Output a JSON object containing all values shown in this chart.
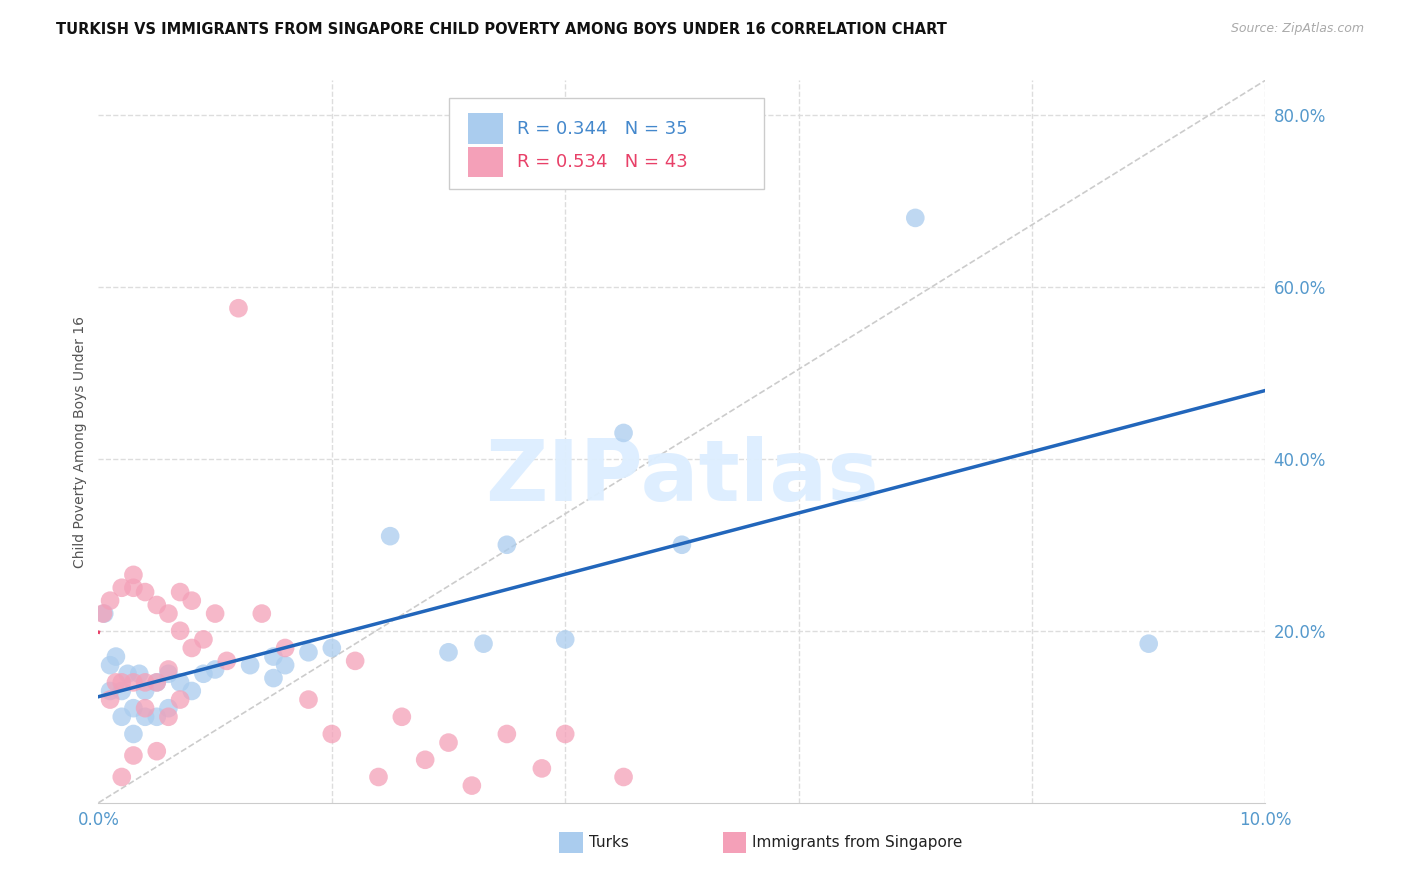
{
  "title": "TURKISH VS IMMIGRANTS FROM SINGAPORE CHILD POVERTY AMONG BOYS UNDER 16 CORRELATION CHART",
  "source": "Source: ZipAtlas.com",
  "ylabel": "Child Poverty Among Boys Under 16",
  "xlim": [
    0.0,
    0.1
  ],
  "ylim": [
    0.0,
    0.84
  ],
  "xticks": [
    0.0,
    0.02,
    0.04,
    0.06,
    0.08,
    0.1
  ],
  "yticks": [
    0.2,
    0.4,
    0.6,
    0.8
  ],
  "turks_color": "#aaccee",
  "singapore_color": "#f4a0b8",
  "turks_line_color": "#2266bb",
  "singapore_line_color": "#e84068",
  "turks_R": 0.344,
  "turks_N": 35,
  "singapore_R": 0.534,
  "singapore_N": 43,
  "turks_x": [
    0.0005,
    0.001,
    0.001,
    0.0015,
    0.002,
    0.002,
    0.0025,
    0.003,
    0.003,
    0.0035,
    0.004,
    0.004,
    0.005,
    0.005,
    0.006,
    0.006,
    0.007,
    0.008,
    0.009,
    0.01,
    0.013,
    0.015,
    0.015,
    0.016,
    0.018,
    0.02,
    0.025,
    0.03,
    0.033,
    0.035,
    0.04,
    0.045,
    0.05,
    0.07,
    0.09
  ],
  "turks_y": [
    0.22,
    0.16,
    0.13,
    0.17,
    0.13,
    0.1,
    0.15,
    0.11,
    0.08,
    0.15,
    0.13,
    0.1,
    0.14,
    0.1,
    0.15,
    0.11,
    0.14,
    0.13,
    0.15,
    0.155,
    0.16,
    0.145,
    0.17,
    0.16,
    0.175,
    0.18,
    0.31,
    0.175,
    0.185,
    0.3,
    0.19,
    0.43,
    0.3,
    0.68,
    0.185
  ],
  "singapore_x": [
    0.0004,
    0.001,
    0.001,
    0.0015,
    0.002,
    0.002,
    0.002,
    0.003,
    0.003,
    0.003,
    0.003,
    0.004,
    0.004,
    0.004,
    0.005,
    0.005,
    0.005,
    0.006,
    0.006,
    0.006,
    0.007,
    0.007,
    0.007,
    0.008,
    0.008,
    0.009,
    0.01,
    0.011,
    0.012,
    0.014,
    0.016,
    0.018,
    0.02,
    0.022,
    0.024,
    0.026,
    0.028,
    0.03,
    0.032,
    0.035,
    0.038,
    0.04,
    0.045
  ],
  "singapore_y": [
    0.22,
    0.12,
    0.235,
    0.14,
    0.25,
    0.14,
    0.03,
    0.25,
    0.265,
    0.14,
    0.055,
    0.245,
    0.14,
    0.11,
    0.23,
    0.14,
    0.06,
    0.22,
    0.155,
    0.1,
    0.245,
    0.2,
    0.12,
    0.235,
    0.18,
    0.19,
    0.22,
    0.165,
    0.575,
    0.22,
    0.18,
    0.12,
    0.08,
    0.165,
    0.03,
    0.1,
    0.05,
    0.07,
    0.02,
    0.08,
    0.04,
    0.08,
    0.03
  ],
  "background_color": "#ffffff",
  "grid_color": "#dddddd",
  "tick_color": "#5599cc",
  "title_fontsize": 10.5,
  "label_fontsize": 10,
  "tick_fontsize": 12,
  "legend_fontsize": 13,
  "watermark": "ZIPatlas"
}
